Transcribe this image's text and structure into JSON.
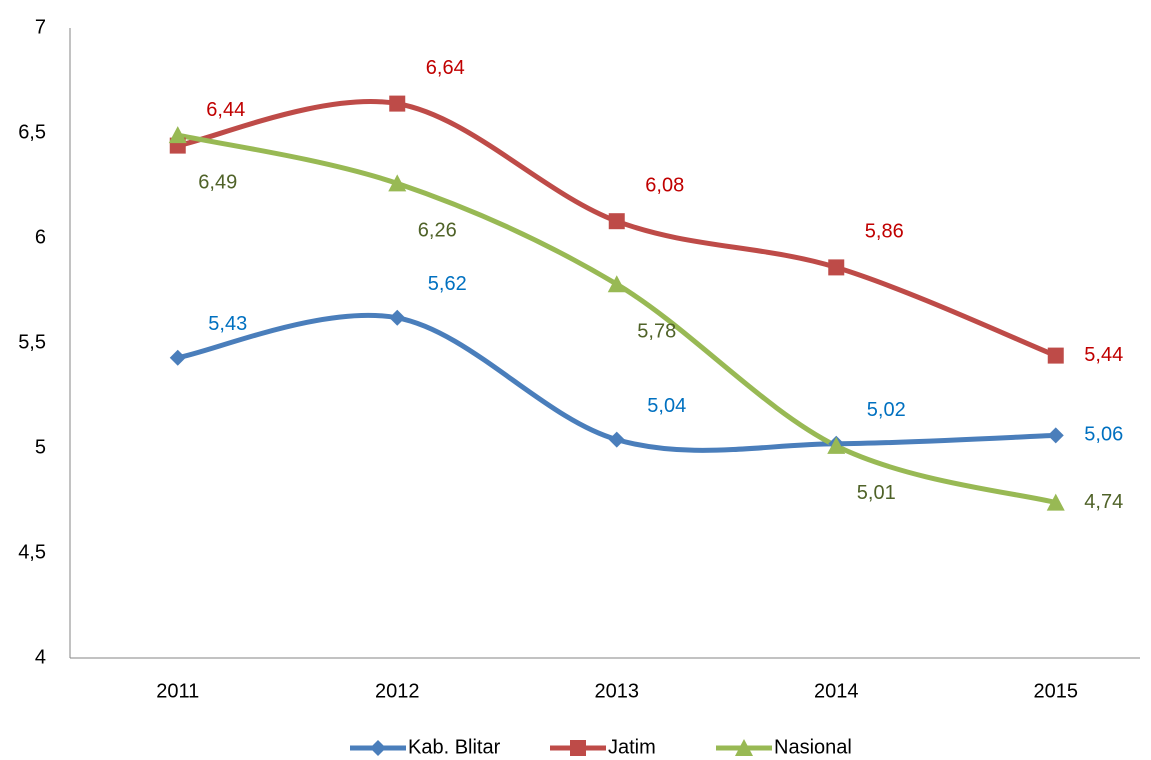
{
  "chart_data": {
    "type": "line",
    "categories": [
      "2011",
      "2012",
      "2013",
      "2014",
      "2015"
    ],
    "series": [
      {
        "name": "Kab. Blitar",
        "color": "#4a7ebb",
        "label_color": "#0070c0",
        "marker": "diamond",
        "values": [
          5.43,
          5.62,
          5.04,
          5.02,
          5.06
        ],
        "value_labels": [
          "5,43",
          "5,62",
          "5,04",
          "5,02",
          "5,06"
        ]
      },
      {
        "name": "Jatim",
        "color": "#be4b48",
        "label_color": "#c00000",
        "marker": "square",
        "values": [
          6.44,
          6.64,
          6.08,
          5.86,
          5.44
        ],
        "value_labels": [
          "6,44",
          "6,64",
          "6,08",
          "5,86",
          "5,44"
        ]
      },
      {
        "name": "Nasional",
        "color": "#98b954",
        "label_color": "#4f6228",
        "marker": "triangle",
        "values": [
          6.49,
          6.26,
          5.78,
          5.01,
          4.74
        ],
        "value_labels": [
          "6,49",
          "6,26",
          "5,78",
          "5,01",
          "4,74"
        ]
      }
    ],
    "ylim": [
      4,
      7
    ],
    "yticks": [
      4,
      {
        "value": 4.5,
        "label": "4,5"
      },
      5,
      {
        "value": 5.5,
        "label": "5,5"
      },
      6,
      {
        "value": 6.5,
        "label": "6,5"
      },
      7
    ],
    "smooth": true,
    "legend": "bottom"
  }
}
